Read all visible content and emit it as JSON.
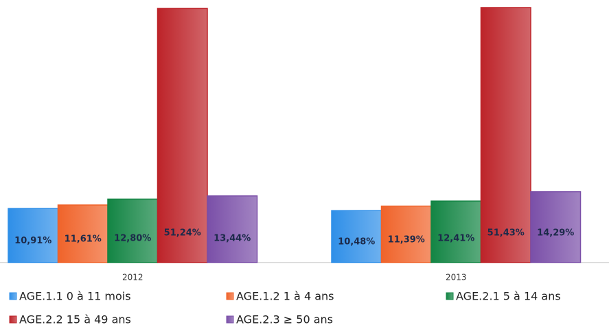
{
  "chart_data": {
    "type": "bar",
    "categories": [
      "2012",
      "2013"
    ],
    "series": [
      {
        "name": "AGE.1.1 0 à 11 mois",
        "color": "#2f8fe8",
        "values": [
          10.91,
          10.48
        ],
        "value_labels": [
          "10,91%",
          "10,48%"
        ]
      },
      {
        "name": "AGE.1.2 1 à 4 ans",
        "color": "#f0632a",
        "values": [
          11.61,
          11.39
        ],
        "value_labels": [
          "11,61%",
          "11,39%"
        ]
      },
      {
        "name": "AGE.2.1 5 à 14 ans",
        "color": "#138544",
        "values": [
          12.8,
          12.41
        ],
        "value_labels": [
          "12,80%",
          "12,41%"
        ]
      },
      {
        "name": "AGE.2.2 15 à 49 ans",
        "color": "#bd2329",
        "values": [
          51.24,
          51.43
        ],
        "value_labels": [
          "51,24%",
          "51,43%"
        ]
      },
      {
        "name": "AGE.2.3 ≥ 50 ans",
        "color": "#7a4fa8",
        "values": [
          13.44,
          14.29
        ],
        "value_labels": [
          "13,44%",
          "14,29%"
        ]
      }
    ]
  }
}
